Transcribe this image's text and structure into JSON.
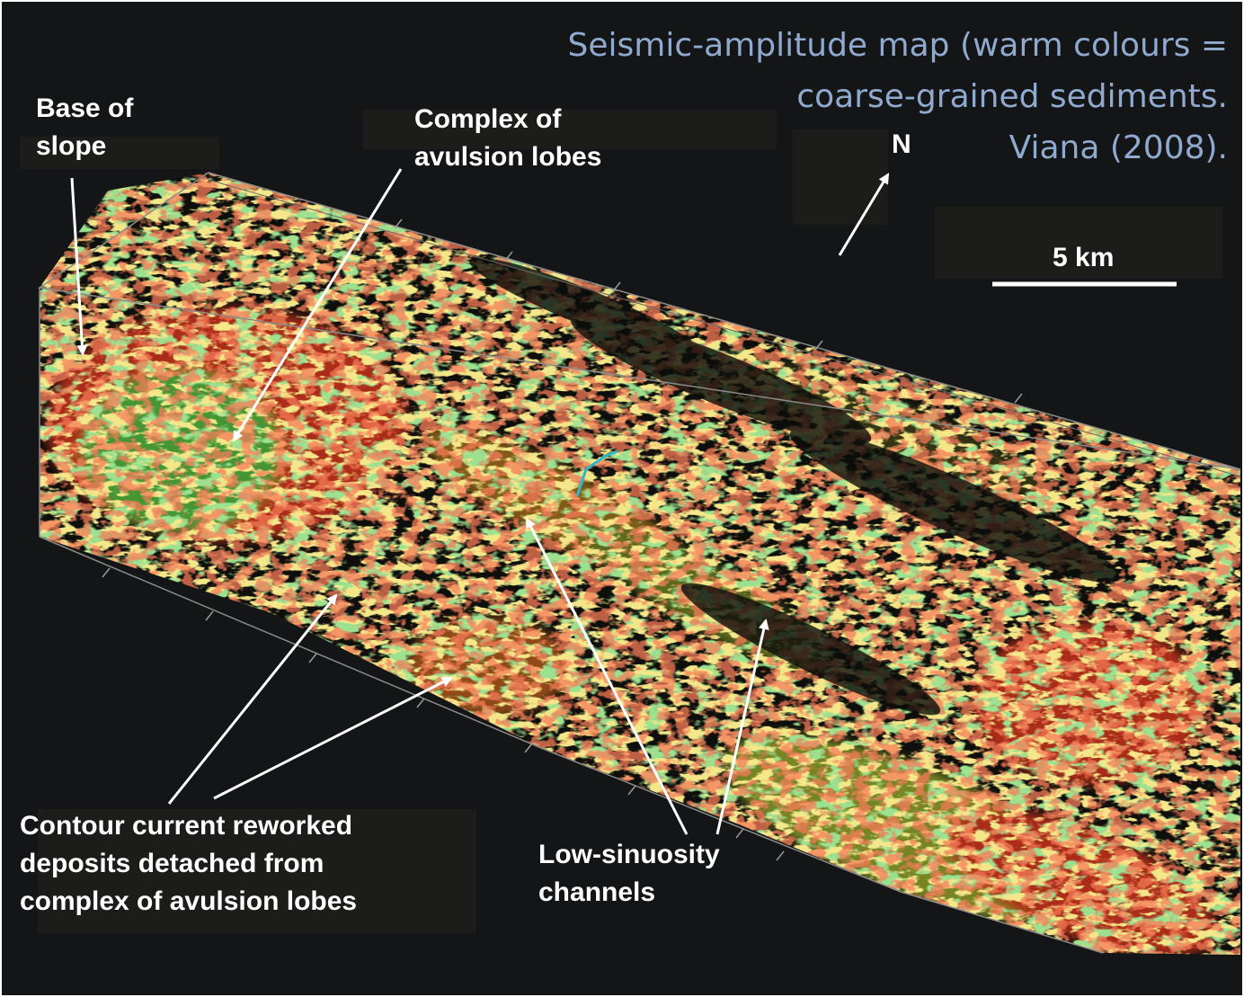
{
  "title": {
    "line1": "Seismic-amplitude map (warm colours =",
    "line2": "coarse-grained sediments.",
    "line3": "Viana (2008)."
  },
  "labels": {
    "base_of_slope": "Base of\nslope",
    "avulsion_lobes": "Complex of\navulsion lobes",
    "contour_current": "Contour current reworked\ndeposits detached from\ncomplex of avulsion lobes",
    "low_sinuosity": "Low-sinuosity\nchannels"
  },
  "north_arrow": {
    "label": "N",
    "icon": "north-arrow-icon"
  },
  "scale_bar": {
    "label": "5 km"
  },
  "colors": {
    "background": "#141516",
    "high_amplitude": "#e8321c",
    "mid_amplitude": "#e8c83a",
    "low_amplitude": "#5cc248",
    "title_text": "#8fa9cf",
    "annotation_text": "#ffffff"
  }
}
